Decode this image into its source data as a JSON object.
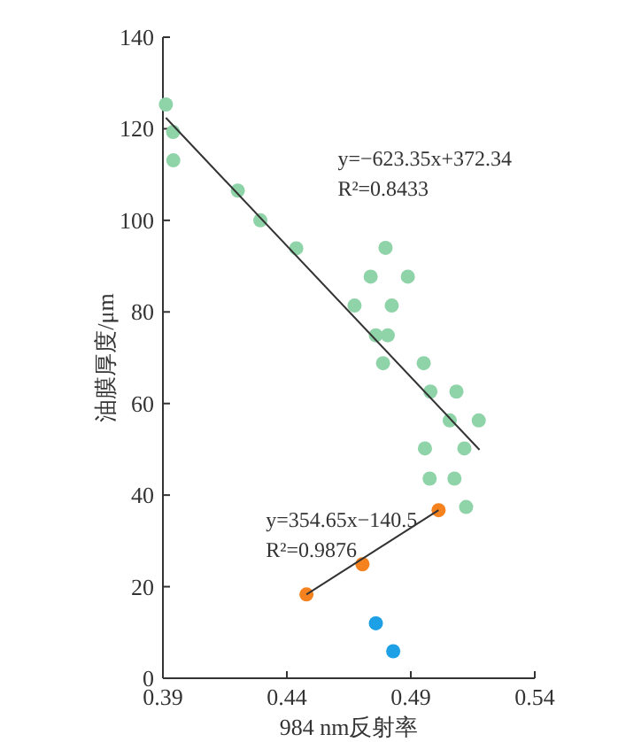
{
  "chart_data": {
    "type": "scatter",
    "xlabel": "984 nm反射率",
    "ylabel": "油膜厚度/μm",
    "xlim": [
      0.39,
      0.54
    ],
    "xticks": [
      0.39,
      0.44,
      0.49,
      0.54
    ],
    "ylim": [
      0,
      140
    ],
    "yticks": [
      0,
      20,
      40,
      60,
      80,
      100,
      120,
      140
    ],
    "grid": false,
    "series": [
      {
        "marker": "circle",
        "color": "#8fd3a8",
        "x": [
          0.3912,
          0.3941,
          0.3942,
          0.4202,
          0.4293,
          0.4438,
          0.4673,
          0.4738,
          0.4798,
          0.4888,
          0.4823,
          0.4759,
          0.4807,
          0.4788,
          0.4952,
          0.4979,
          0.5084,
          0.5057,
          0.5174,
          0.4957,
          0.5116,
          0.4976,
          0.5076,
          0.5123
        ],
        "values": [
          125.3,
          119.3,
          113.1,
          106.5,
          100.0,
          93.9,
          81.4,
          87.7,
          94.0,
          87.7,
          81.4,
          74.9,
          74.9,
          68.8,
          68.8,
          62.6,
          62.6,
          56.3,
          56.3,
          50.2,
          50.2,
          43.6,
          43.6,
          37.4
        ]
      },
      {
        "marker": "circle",
        "color": "#f5821f",
        "x": [
          0.4479,
          0.4705,
          0.5012
        ],
        "values": [
          18.3,
          24.9,
          36.7
        ]
      },
      {
        "marker": "circle",
        "color": "#1ea0e6",
        "x": [
          0.4759,
          0.4829
        ],
        "values": [
          12.0,
          5.9
        ]
      },
      {
        "type": "line",
        "color": "#333333",
        "x": [
          0.3912,
          0.5177
        ],
        "values": [
          122.4,
          49.9
        ]
      },
      {
        "type": "line",
        "color": "#333333",
        "x": [
          0.4479,
          0.5012
        ],
        "values": [
          18.3,
          36.7
        ]
      }
    ],
    "annotations": [
      "y=−623.35x+372.34\nR²=0.8433",
      "y=354.65x−140.5\nR²=0.9876"
    ]
  }
}
